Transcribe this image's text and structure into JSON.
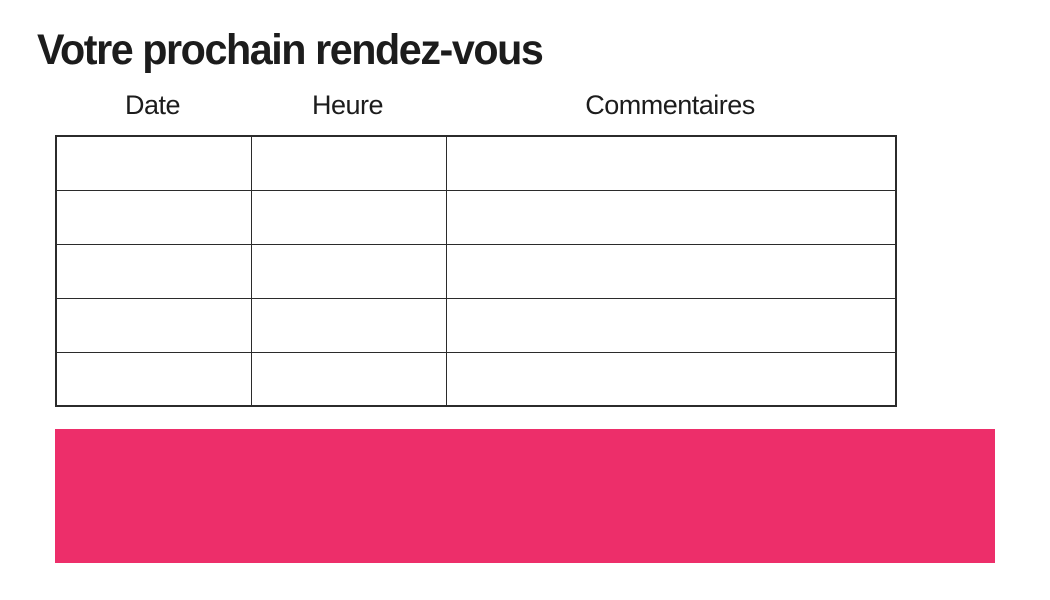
{
  "page": {
    "title": "Votre prochain rendez-vous",
    "background_color": "#ffffff"
  },
  "appointments_table": {
    "columns": [
      {
        "label": "Date"
      },
      {
        "label": "Heure"
      },
      {
        "label": "Commentaires"
      }
    ],
    "rows": [
      [
        "",
        "",
        ""
      ],
      [
        "",
        "",
        ""
      ],
      [
        "",
        "",
        ""
      ],
      [
        "",
        "",
        ""
      ],
      [
        "",
        "",
        ""
      ]
    ],
    "border_color": "#2b2b2b"
  },
  "accent_block": {
    "color": "#ED2E6A"
  }
}
